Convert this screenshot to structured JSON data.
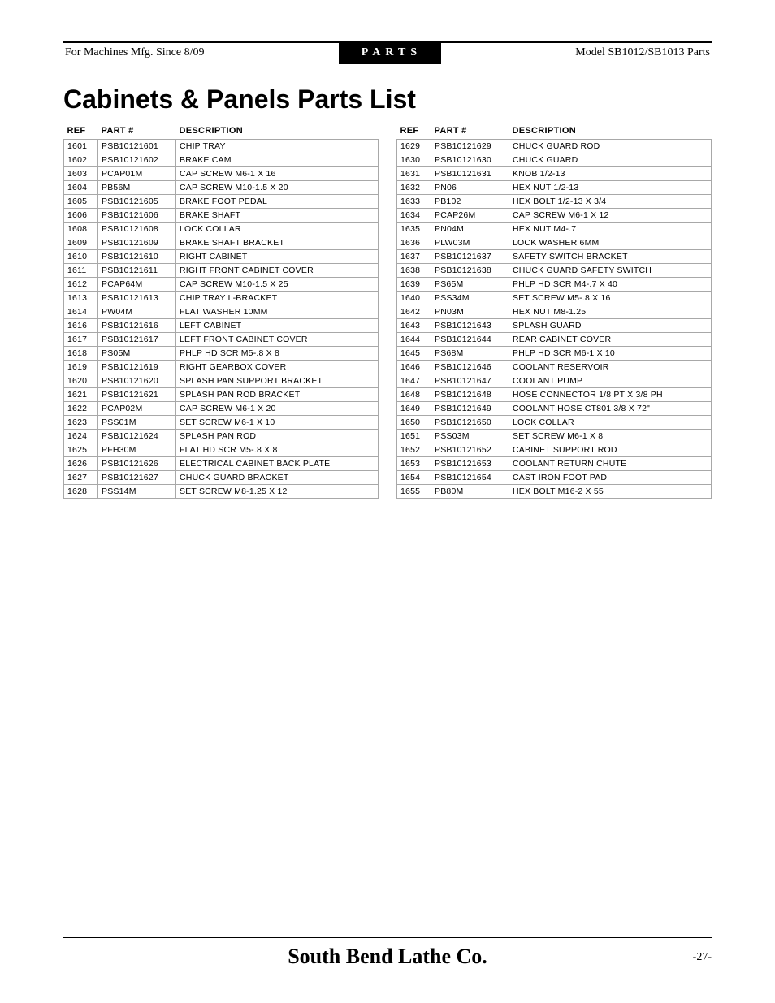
{
  "header": {
    "left": "For Machines Mfg. Since 8/09",
    "center": "PARTS",
    "right": "Model SB1012/SB1013 Parts"
  },
  "title": "Cabinets & Panels Parts List",
  "columns": [
    "REF",
    "PART #",
    "DESCRIPTION"
  ],
  "left_table": [
    [
      "1601",
      "PSB10121601",
      "CHIP TRAY"
    ],
    [
      "1602",
      "PSB10121602",
      "BRAKE CAM"
    ],
    [
      "1603",
      "PCAP01M",
      "CAP SCREW M6-1 X 16"
    ],
    [
      "1604",
      "PB56M",
      "CAP SCREW M10-1.5 X 20"
    ],
    [
      "1605",
      "PSB10121605",
      "BRAKE FOOT PEDAL"
    ],
    [
      "1606",
      "PSB10121606",
      "BRAKE SHAFT"
    ],
    [
      "1608",
      "PSB10121608",
      "LOCK COLLAR"
    ],
    [
      "1609",
      "PSB10121609",
      "BRAKE SHAFT BRACKET"
    ],
    [
      "1610",
      "PSB10121610",
      "RIGHT CABINET"
    ],
    [
      "1611",
      "PSB10121611",
      "RIGHT FRONT CABINET COVER"
    ],
    [
      "1612",
      "PCAP64M",
      "CAP SCREW M10-1.5 X 25"
    ],
    [
      "1613",
      "PSB10121613",
      "CHIP TRAY L-BRACKET"
    ],
    [
      "1614",
      "PW04M",
      "FLAT WASHER 10MM"
    ],
    [
      "1616",
      "PSB10121616",
      "LEFT CABINET"
    ],
    [
      "1617",
      "PSB10121617",
      "LEFT FRONT CABINET COVER"
    ],
    [
      "1618",
      "PS05M",
      "PHLP HD SCR M5-.8 X 8"
    ],
    [
      "1619",
      "PSB10121619",
      "RIGHT GEARBOX COVER"
    ],
    [
      "1620",
      "PSB10121620",
      "SPLASH PAN SUPPORT BRACKET"
    ],
    [
      "1621",
      "PSB10121621",
      "SPLASH PAN ROD BRACKET"
    ],
    [
      "1622",
      "PCAP02M",
      "CAP SCREW M6-1 X 20"
    ],
    [
      "1623",
      "PSS01M",
      "SET SCREW M6-1 X 10"
    ],
    [
      "1624",
      "PSB10121624",
      "SPLASH PAN ROD"
    ],
    [
      "1625",
      "PFH30M",
      "FLAT HD SCR M5-.8 X 8"
    ],
    [
      "1626",
      "PSB10121626",
      "ELECTRICAL CABINET BACK PLATE"
    ],
    [
      "1627",
      "PSB10121627",
      "CHUCK GUARD BRACKET"
    ],
    [
      "1628",
      "PSS14M",
      "SET SCREW M8-1.25 X 12"
    ]
  ],
  "right_table": [
    [
      "1629",
      "PSB10121629",
      "CHUCK GUARD ROD"
    ],
    [
      "1630",
      "PSB10121630",
      "CHUCK GUARD"
    ],
    [
      "1631",
      "PSB10121631",
      "KNOB 1/2-13"
    ],
    [
      "1632",
      "PN06",
      "HEX NUT 1/2-13"
    ],
    [
      "1633",
      "PB102",
      "HEX BOLT 1/2-13 X 3/4"
    ],
    [
      "1634",
      "PCAP26M",
      "CAP SCREW M6-1 X 12"
    ],
    [
      "1635",
      "PN04M",
      "HEX NUT M4-.7"
    ],
    [
      "1636",
      "PLW03M",
      "LOCK WASHER 6MM"
    ],
    [
      "1637",
      "PSB10121637",
      "SAFETY SWITCH BRACKET"
    ],
    [
      "1638",
      "PSB10121638",
      "CHUCK GUARD SAFETY SWITCH"
    ],
    [
      "1639",
      "PS65M",
      "PHLP HD SCR M4-.7 X 40"
    ],
    [
      "1640",
      "PSS34M",
      "SET SCREW M5-.8 X 16"
    ],
    [
      "1642",
      "PN03M",
      "HEX NUT M8-1.25"
    ],
    [
      "1643",
      "PSB10121643",
      "SPLASH GUARD"
    ],
    [
      "1644",
      "PSB10121644",
      "REAR CABINET COVER"
    ],
    [
      "1645",
      "PS68M",
      "PHLP HD SCR M6-1 X 10"
    ],
    [
      "1646",
      "PSB10121646",
      "COOLANT RESERVOIR"
    ],
    [
      "1647",
      "PSB10121647",
      "COOLANT PUMP"
    ],
    [
      "1648",
      "PSB10121648",
      "HOSE CONNECTOR 1/8 PT X 3/8 PH"
    ],
    [
      "1649",
      "PSB10121649",
      "COOLANT HOSE CT801 3/8 X 72\""
    ],
    [
      "1650",
      "PSB10121650",
      "LOCK COLLAR"
    ],
    [
      "1651",
      "PSS03M",
      "SET SCREW M6-1 X 8"
    ],
    [
      "1652",
      "PSB10121652",
      "CABINET SUPPORT ROD"
    ],
    [
      "1653",
      "PSB10121653",
      "COOLANT RETURN CHUTE"
    ],
    [
      "1654",
      "PSB10121654",
      "CAST IRON FOOT PAD"
    ],
    [
      "1655",
      "PB80M",
      "HEX BOLT M16-2 X 55"
    ]
  ],
  "footer": {
    "brand": "South Bend Lathe Co.",
    "page": "-27-"
  },
  "style": {
    "page_bg": "#ffffff",
    "rule_color": "#000000",
    "cell_border": "#a8a8a8",
    "title_fontsize": 32,
    "header_fontsize": 14,
    "table_fontsize": 11,
    "brand_fontsize": 26
  }
}
